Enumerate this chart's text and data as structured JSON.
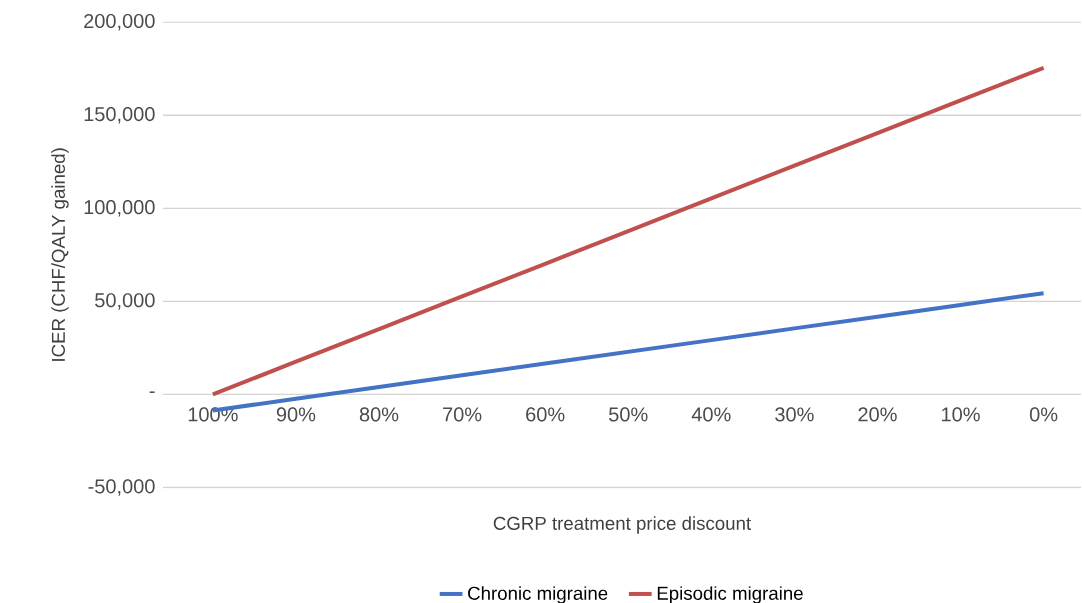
{
  "chart_data": {
    "type": "line",
    "xlabel": "CGRP treatment price discount",
    "ylabel": "ICER (CHF/QALY gained)",
    "categories": [
      "100%",
      "90%",
      "80%",
      "70%",
      "60%",
      "50%",
      "40%",
      "30%",
      "20%",
      "10%",
      "0%"
    ],
    "series": [
      {
        "name": "Chronic migraine",
        "color": "#4472c4",
        "values": [
          -8600,
          -2300,
          4000,
          10300,
          16600,
          22900,
          29200,
          35500,
          41800,
          48100,
          54400
        ]
      },
      {
        "name": "Episodic migraine",
        "color": "#c0504d",
        "values": [
          0,
          17600,
          35100,
          52700,
          70200,
          87800,
          105300,
          122900,
          140400,
          158000,
          175500
        ]
      }
    ],
    "ylim": [
      -50000,
      200000
    ],
    "yticks": [
      {
        "value": -50000,
        "label": "-50,000"
      },
      {
        "value": 0,
        "label": "-"
      },
      {
        "value": 50000,
        "label": "50,000"
      },
      {
        "value": 100000,
        "label": "100,000"
      },
      {
        "value": 150000,
        "label": "150,000"
      },
      {
        "value": 200000,
        "label": "200,000"
      }
    ],
    "grid": "y",
    "legend": "bottom",
    "marker": "none",
    "line_style": "solid"
  }
}
